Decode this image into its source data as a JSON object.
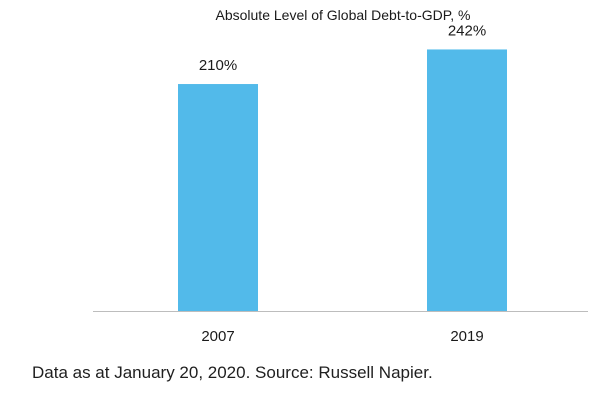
{
  "colors": {
    "bar": "#52BAEA",
    "axis": "#bdbdbd",
    "text": "#1a1a1a"
  },
  "footnote": "Data as at January 20, 2020. Source: Russell Napier.",
  "chart_data": {
    "type": "bar",
    "title": "Absolute Level of Global Debt-to-GDP, %",
    "xlabel": "",
    "ylabel": "",
    "categories": [
      "2007",
      "2019"
    ],
    "values": [
      210,
      242
    ],
    "data_labels": [
      "210%",
      "242%"
    ],
    "ylim": [
      0,
      260
    ],
    "grid": false,
    "legend": "none"
  }
}
